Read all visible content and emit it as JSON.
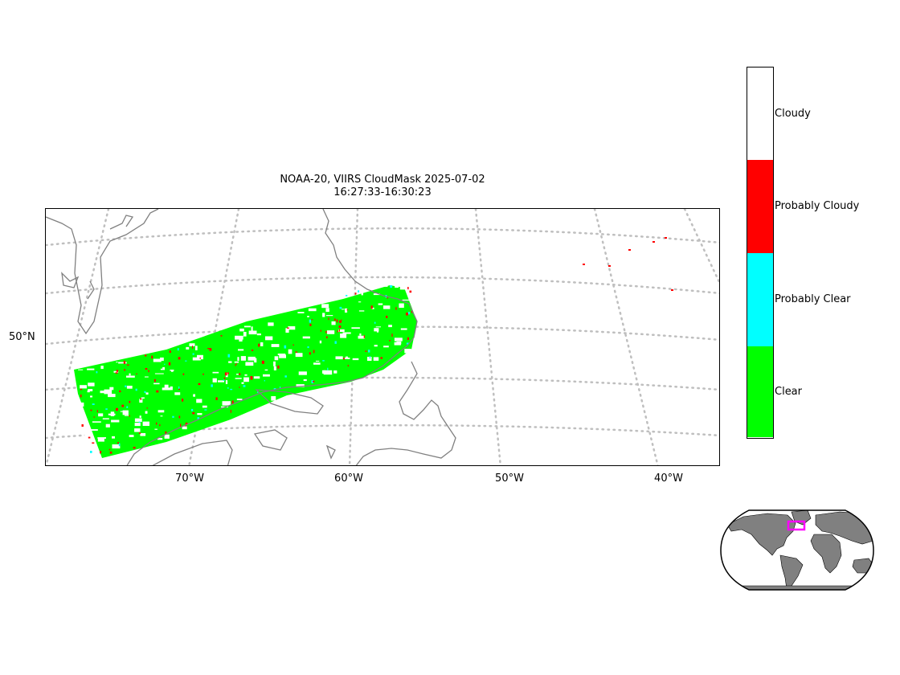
{
  "title": {
    "line1": "NOAA-20, VIIRS CloudMask 2025-07-02",
    "line2": "16:27:33-16:30:23"
  },
  "axes": {
    "x_ticks": [
      "70°W",
      "60°W",
      "50°W",
      "40°W"
    ],
    "y_ticks": [
      "50°N"
    ]
  },
  "map": {
    "projection": "conic",
    "gridlines": "dotted",
    "coastline_color": "#808080",
    "gridline_color": "#bfbfbf"
  },
  "colorbar": {
    "categories": [
      {
        "label": "Cloudy",
        "color": "#ffffff"
      },
      {
        "label": "Probably Cloudy",
        "color": "#ff0000"
      },
      {
        "label": "Probably Clear",
        "color": "#00ffff"
      },
      {
        "label": "Clear",
        "color": "#00ff00"
      }
    ]
  },
  "inset": {
    "land_color": "#808080",
    "region_box_color": "#ff00ff"
  }
}
